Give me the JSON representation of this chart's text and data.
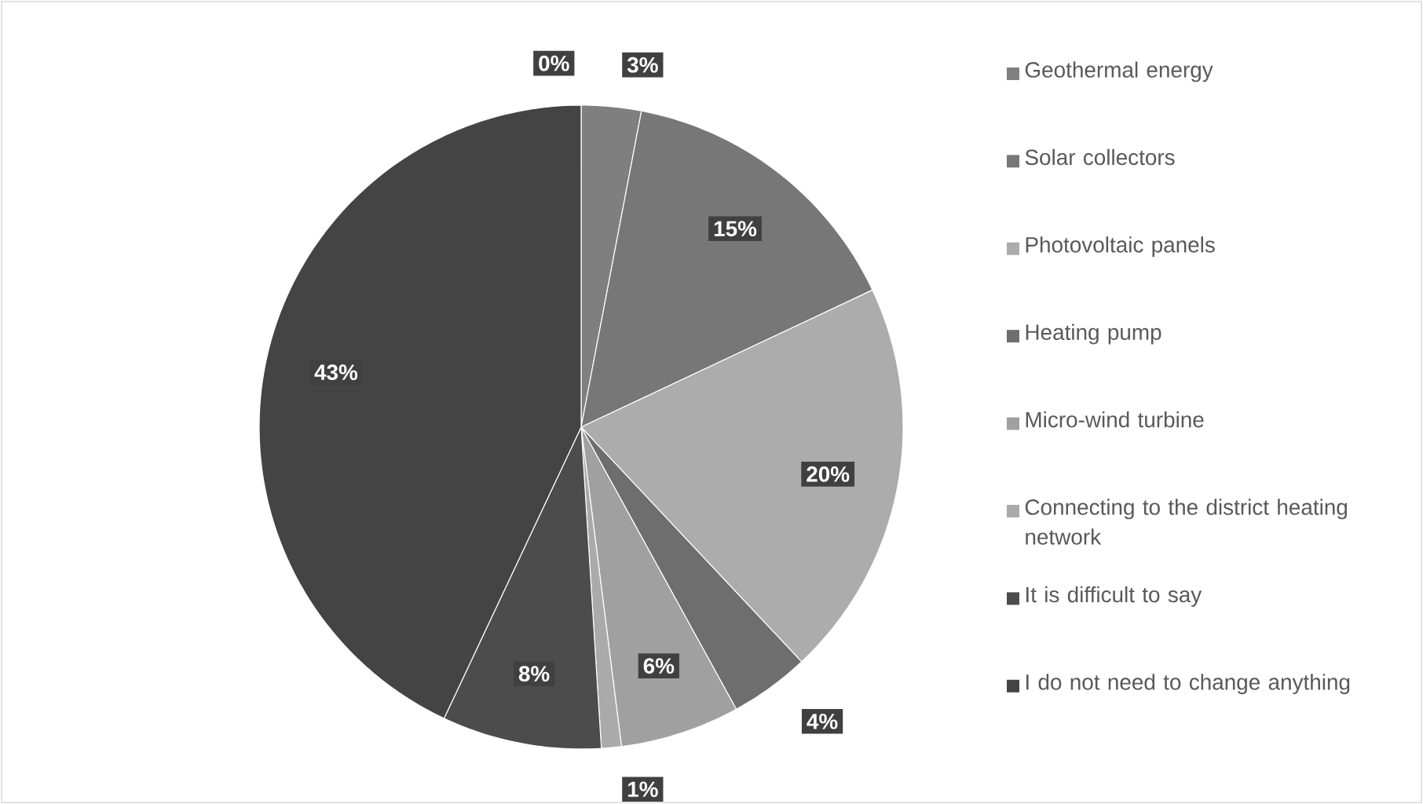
{
  "chart_data": {
    "type": "pie",
    "categories": [
      null,
      "Geothermal energy",
      "Solar collectors",
      "Photovoltaic panels",
      "Heating pump",
      "Micro-wind turbine",
      "Connecting to the district heating network",
      "It is difficult to say",
      "I do not need to change anything"
    ],
    "values": [
      0,
      3,
      15,
      20,
      4,
      6,
      1,
      8,
      43
    ],
    "colors": [
      "#8a8a8a",
      "#7f7f7f",
      "#777777",
      "#acacac",
      "#6e6e6e",
      "#a0a0a0",
      "#aaaaaa",
      "#4c4c4c",
      "#444444"
    ],
    "value_labels": [
      "0%",
      "3%",
      "15%",
      "20%",
      "4%",
      "6%",
      "1%",
      "8%",
      "43%"
    ],
    "legend": "right"
  }
}
